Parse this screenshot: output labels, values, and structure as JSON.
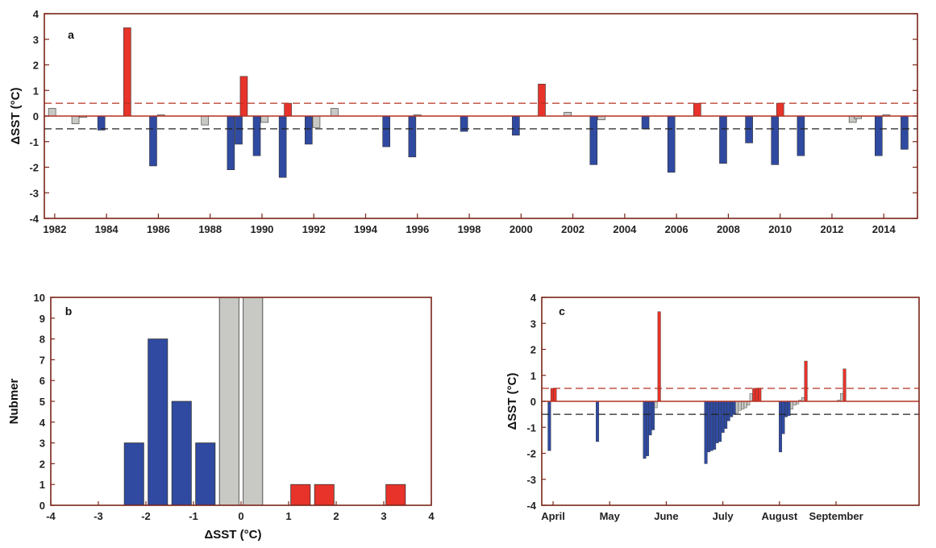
{
  "chart_data": [
    {
      "panel": "a",
      "type": "bar",
      "ylabel": "ΔSST (°C)",
      "ylim": [
        -4,
        4
      ],
      "yticks": [
        -4,
        -3,
        -2,
        -1,
        0,
        1,
        2,
        3,
        4
      ],
      "xlim": [
        1981.6,
        2015.3
      ],
      "xticks": [
        1982,
        1984,
        1986,
        1988,
        1990,
        1992,
        1994,
        1996,
        1998,
        2000,
        2002,
        2004,
        2006,
        2008,
        2010,
        2012,
        2014
      ],
      "threshold_lines": [
        0.5,
        -0.5
      ],
      "colors": {
        "warm": "#e8332a",
        "cold": "#2f4aa0",
        "neutral": "#c8c8c4",
        "axis": "#7a2418",
        "zero": "#b43222"
      },
      "bars": [
        {
          "x": 1981.9,
          "v": 0.3
        },
        {
          "x": 1982.8,
          "v": -0.3
        },
        {
          "x": 1983.1,
          "v": -0.05
        },
        {
          "x": 1983.8,
          "v": -0.55
        },
        {
          "x": 1984.8,
          "v": 3.45
        },
        {
          "x": 1985.8,
          "v": -1.95
        },
        {
          "x": 1986.1,
          "v": 0.05
        },
        {
          "x": 1987.8,
          "v": -0.35
        },
        {
          "x": 1988.8,
          "v": -2.1
        },
        {
          "x": 1989.1,
          "v": -1.1
        },
        {
          "x": 1989.3,
          "v": 1.55
        },
        {
          "x": 1989.8,
          "v": -1.55
        },
        {
          "x": 1990.1,
          "v": -0.25
        },
        {
          "x": 1990.8,
          "v": -2.4
        },
        {
          "x": 1991.0,
          "v": 0.5
        },
        {
          "x": 1991.8,
          "v": -1.1
        },
        {
          "x": 1992.1,
          "v": -0.45
        },
        {
          "x": 1992.8,
          "v": 0.3
        },
        {
          "x": 1994.8,
          "v": -1.2
        },
        {
          "x": 1995.8,
          "v": -1.6
        },
        {
          "x": 1996.0,
          "v": 0.05
        },
        {
          "x": 1997.8,
          "v": -0.6
        },
        {
          "x": 1999.8,
          "v": -0.75
        },
        {
          "x": 2000.8,
          "v": 1.25
        },
        {
          "x": 2001.8,
          "v": 0.15
        },
        {
          "x": 2002.8,
          "v": -1.9
        },
        {
          "x": 2003.1,
          "v": -0.15
        },
        {
          "x": 2004.8,
          "v": -0.5
        },
        {
          "x": 2005.8,
          "v": -2.2
        },
        {
          "x": 2006.8,
          "v": 0.5
        },
        {
          "x": 2007.8,
          "v": -1.85
        },
        {
          "x": 2008.8,
          "v": -1.05
        },
        {
          "x": 2009.8,
          "v": -1.9
        },
        {
          "x": 2010.0,
          "v": 0.5
        },
        {
          "x": 2010.8,
          "v": -1.55
        },
        {
          "x": 2012.8,
          "v": -0.25
        },
        {
          "x": 2013.0,
          "v": -0.1
        },
        {
          "x": 2013.8,
          "v": -1.55
        },
        {
          "x": 2014.1,
          "v": 0.05
        },
        {
          "x": 2014.8,
          "v": -1.3
        }
      ]
    },
    {
      "panel": "b",
      "type": "bar",
      "xlabel": "ΔSST (°C)",
      "ylabel": "Nubmer",
      "xlim": [
        -4,
        4
      ],
      "ylim": [
        0,
        10
      ],
      "xticks": [
        -4,
        -3,
        -2,
        -1,
        0,
        1,
        2,
        3,
        4
      ],
      "yticks": [
        0,
        1,
        2,
        3,
        4,
        5,
        6,
        7,
        8,
        9,
        10
      ],
      "bin_width": 0.5,
      "colors": {
        "warm": "#e8332a",
        "cold": "#2f4aa0",
        "neutral": "#c8c8c4",
        "axis": "#7a2418"
      },
      "bars": [
        {
          "x": -2.25,
          "v": 3
        },
        {
          "x": -1.75,
          "v": 8
        },
        {
          "x": -1.25,
          "v": 5
        },
        {
          "x": -0.75,
          "v": 3
        },
        {
          "x": -0.25,
          "v": 10
        },
        {
          "x": 0.25,
          "v": 10
        },
        {
          "x": 1.25,
          "v": 1
        },
        {
          "x": 1.75,
          "v": 1
        },
        {
          "x": 3.25,
          "v": 1
        }
      ]
    },
    {
      "panel": "c",
      "type": "bar",
      "ylabel": "ΔSST (°C)",
      "ylim": [
        -4,
        4
      ],
      "yticks": [
        -4,
        -3,
        -2,
        -1,
        0,
        1,
        2,
        3,
        4
      ],
      "xlim": [
        0,
        40
      ],
      "xticks": [
        {
          "x": 1.2,
          "label": "April"
        },
        {
          "x": 7.2,
          "label": "May"
        },
        {
          "x": 13.2,
          "label": "June"
        },
        {
          "x": 19.2,
          "label": "July"
        },
        {
          "x": 25.2,
          "label": "August"
        },
        {
          "x": 31.2,
          "label": "September"
        }
      ],
      "threshold_lines": [
        0.5,
        -0.5
      ],
      "colors": {
        "warm": "#e8332a",
        "cold": "#2f4aa0",
        "neutral": "#c8c8c4",
        "axis": "#7a2418",
        "zero": "#b43222"
      },
      "bars": [
        {
          "x": 0.8,
          "v": -1.9
        },
        {
          "x": 1.1,
          "v": 0.5
        },
        {
          "x": 1.4,
          "v": 0.5
        },
        {
          "x": 5.9,
          "v": -1.55
        },
        {
          "x": 10.9,
          "v": -2.2
        },
        {
          "x": 11.2,
          "v": -2.1
        },
        {
          "x": 11.5,
          "v": -1.3
        },
        {
          "x": 11.8,
          "v": -1.1
        },
        {
          "x": 12.1,
          "v": -0.25
        },
        {
          "x": 12.45,
          "v": 3.45
        },
        {
          "x": 17.4,
          "v": -2.4
        },
        {
          "x": 17.7,
          "v": -1.95
        },
        {
          "x": 18.0,
          "v": -1.9
        },
        {
          "x": 18.3,
          "v": -1.85
        },
        {
          "x": 18.6,
          "v": -1.6
        },
        {
          "x": 18.9,
          "v": -1.55
        },
        {
          "x": 19.2,
          "v": -1.2
        },
        {
          "x": 19.5,
          "v": -1.05
        },
        {
          "x": 19.8,
          "v": -0.75
        },
        {
          "x": 20.1,
          "v": -0.6
        },
        {
          "x": 20.4,
          "v": -0.5
        },
        {
          "x": 20.7,
          "v": -0.45
        },
        {
          "x": 21.0,
          "v": -0.35
        },
        {
          "x": 21.3,
          "v": -0.3
        },
        {
          "x": 21.6,
          "v": -0.25
        },
        {
          "x": 21.9,
          "v": -0.15
        },
        {
          "x": 22.2,
          "v": 0.3
        },
        {
          "x": 22.5,
          "v": 0.5
        },
        {
          "x": 22.8,
          "v": 0.5
        },
        {
          "x": 23.1,
          "v": 0.5
        },
        {
          "x": 25.3,
          "v": -1.95
        },
        {
          "x": 25.6,
          "v": -1.25
        },
        {
          "x": 25.9,
          "v": -0.6
        },
        {
          "x": 26.2,
          "v": -0.55
        },
        {
          "x": 26.5,
          "v": -0.3
        },
        {
          "x": 26.8,
          "v": -0.15
        },
        {
          "x": 27.1,
          "v": -0.1
        },
        {
          "x": 27.4,
          "v": 0.05
        },
        {
          "x": 27.7,
          "v": 0.15
        },
        {
          "x": 28.0,
          "v": 1.55
        },
        {
          "x": 31.5,
          "v": 0.05
        },
        {
          "x": 31.8,
          "v": 0.3
        },
        {
          "x": 32.1,
          "v": 1.25
        }
      ]
    }
  ]
}
